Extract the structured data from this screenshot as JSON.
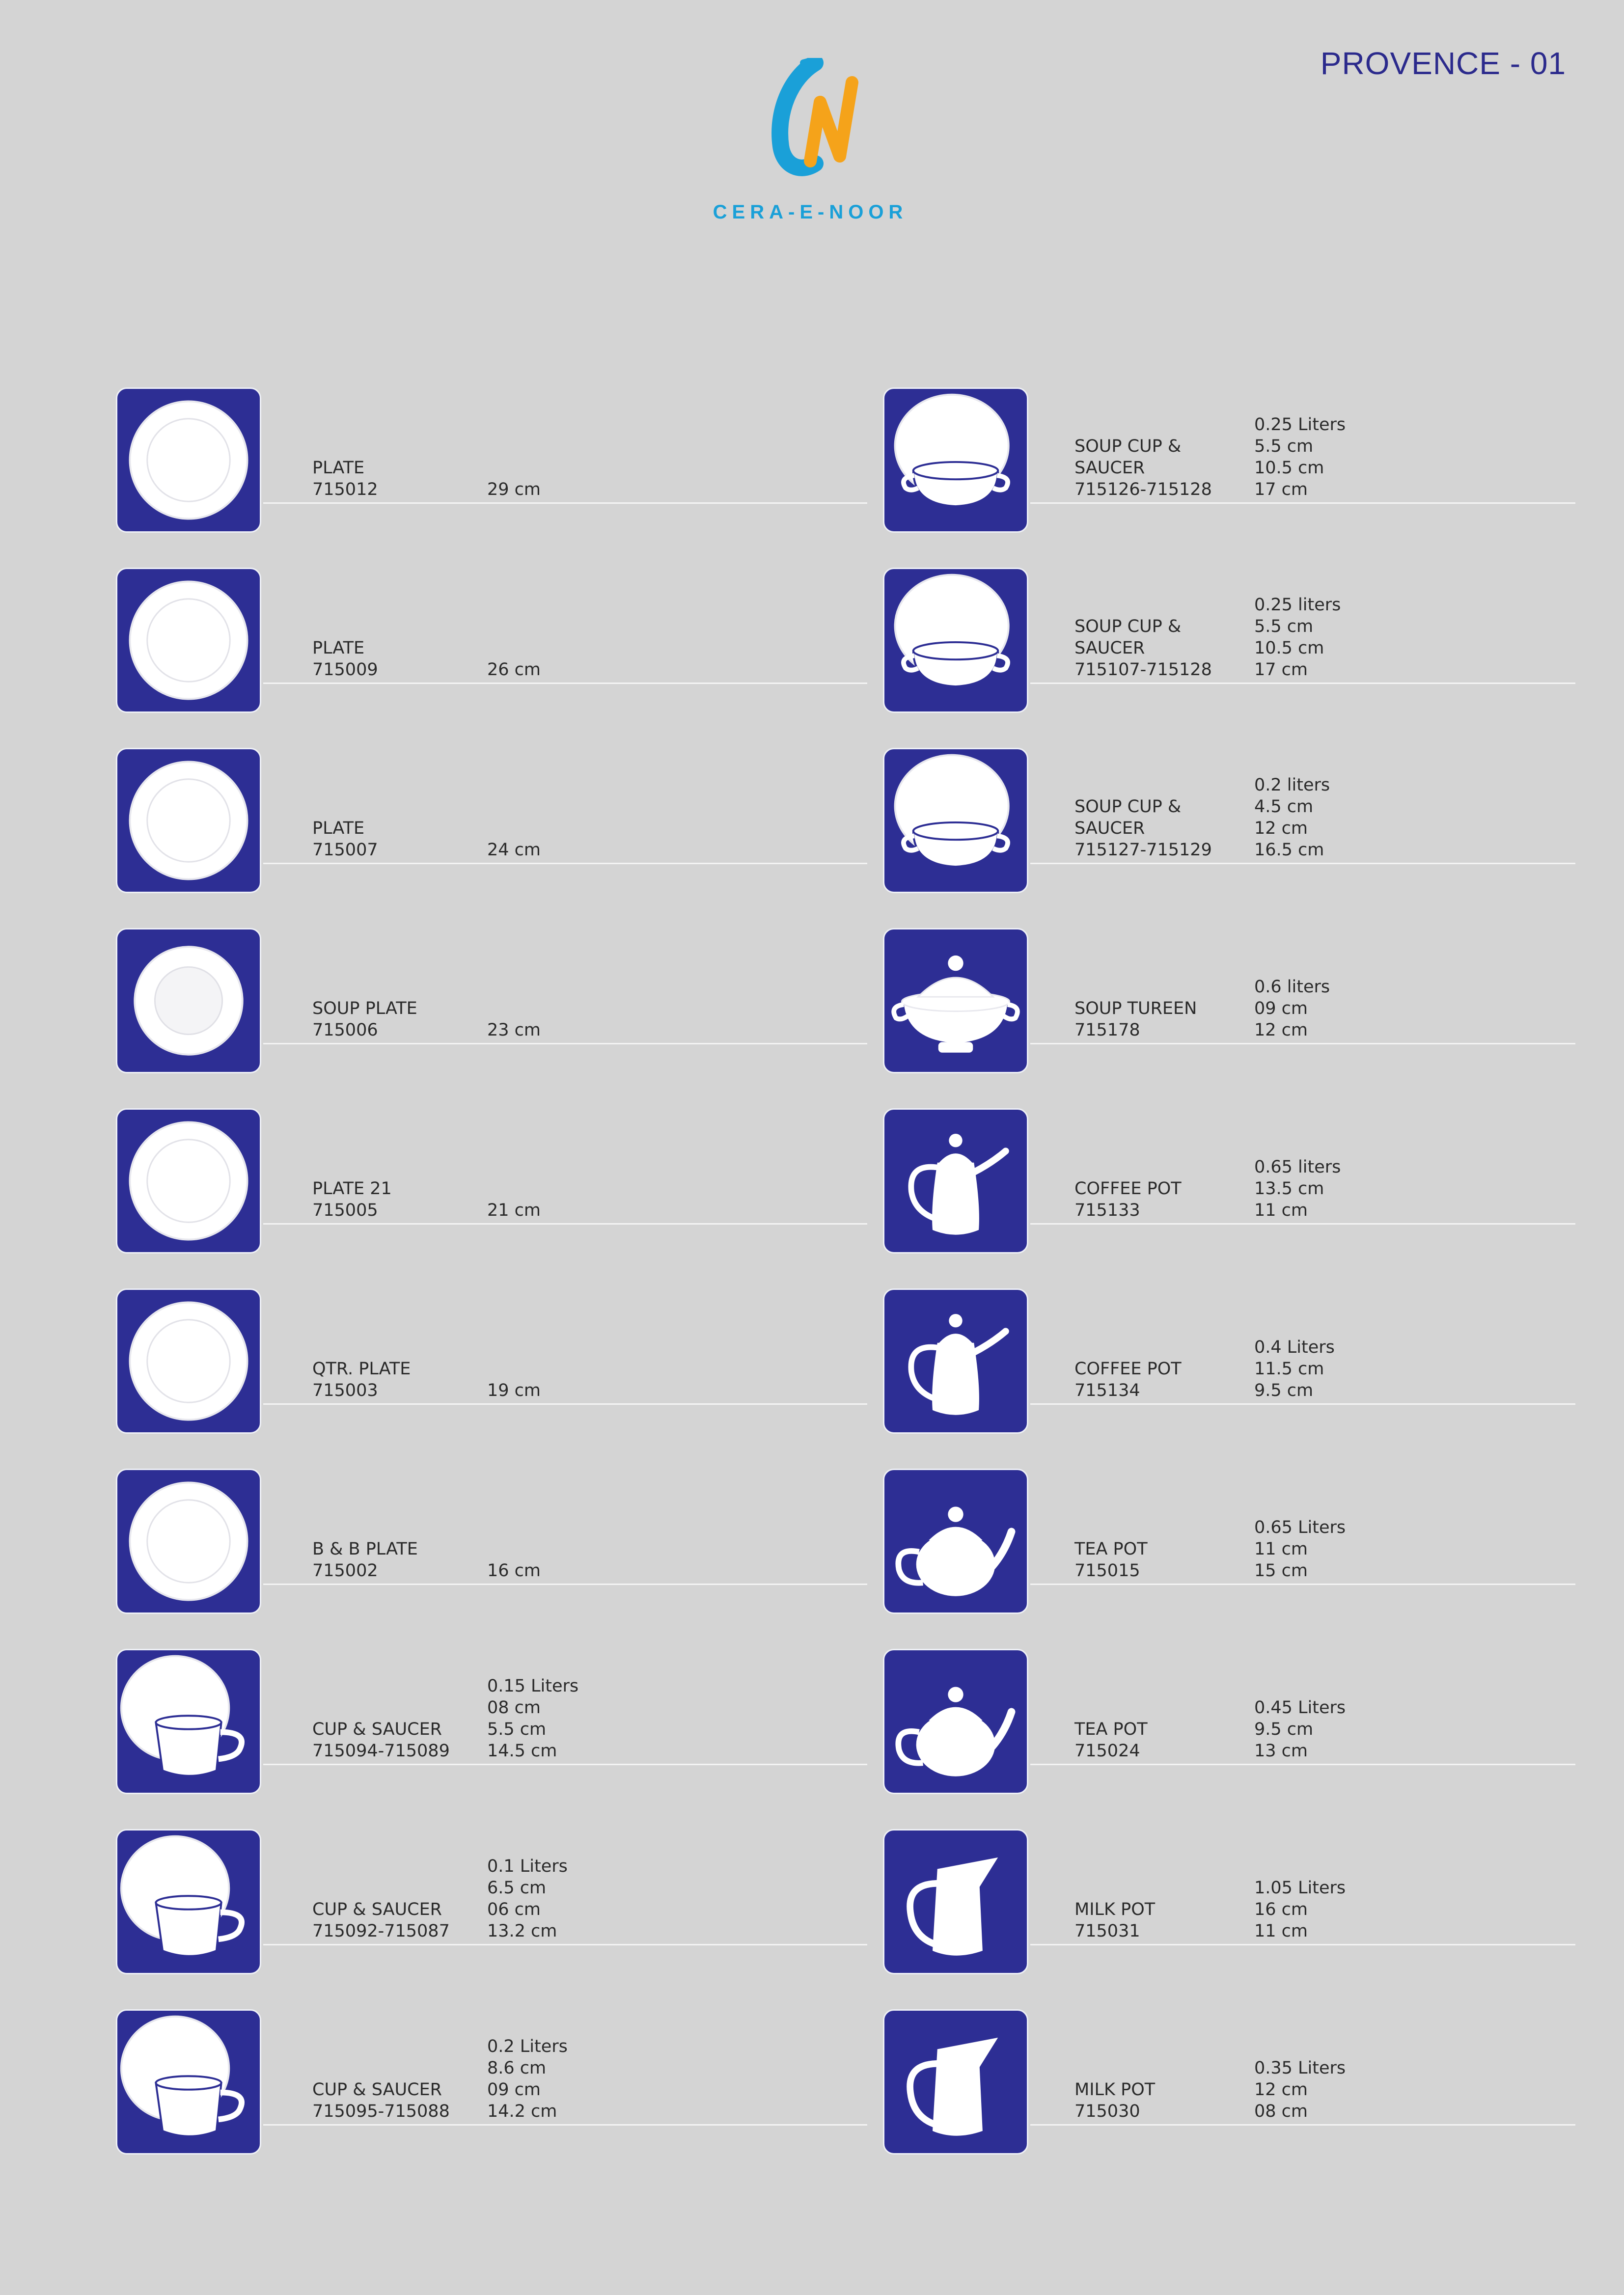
{
  "page": {
    "title": "PROVENCE - 01"
  },
  "brand": {
    "logo_mark": "CN",
    "logo_text": "CERA-E-NOOR",
    "colors": {
      "blue": "#1aa0d8",
      "orange": "#f5a31a",
      "navy": "#2d2e94"
    }
  },
  "left_items": [
    {
      "name": "PLATE",
      "code": "715012",
      "specs": [
        "29 cm"
      ],
      "icon": "plate-icon"
    },
    {
      "name": "PLATE",
      "code": "715009",
      "specs": [
        "26 cm"
      ],
      "icon": "plate-icon"
    },
    {
      "name": "PLATE",
      "code": "715007",
      "specs": [
        "24 cm"
      ],
      "icon": "plate-icon"
    },
    {
      "name": "SOUP PLATE",
      "code": "715006",
      "specs": [
        "23 cm"
      ],
      "icon": "soup-plate-icon"
    },
    {
      "name": "PLATE 21",
      "code": "715005",
      "specs": [
        "21 cm"
      ],
      "icon": "plate-icon"
    },
    {
      "name": "QTR. PLATE",
      "code": "715003",
      "specs": [
        "19 cm"
      ],
      "icon": "plate-icon"
    },
    {
      "name": "B & B PLATE",
      "code": "715002",
      "specs": [
        "16 cm"
      ],
      "icon": "plate-icon"
    },
    {
      "name": "CUP & SAUCER",
      "code": "715094-715089",
      "specs": [
        "0.15 Liters",
        "08 cm",
        "5.5 cm",
        "14.5 cm"
      ],
      "icon": "cup-saucer-icon"
    },
    {
      "name": "CUP & SAUCER",
      "code": "715092-715087",
      "specs": [
        "0.1 Liters",
        "6.5 cm",
        "06 cm",
        "13.2 cm"
      ],
      "icon": "cup-saucer-icon"
    },
    {
      "name": "CUP & SAUCER",
      "code": "715095-715088",
      "specs": [
        "0.2 Liters",
        "8.6 cm",
        "09 cm",
        "14.2 cm"
      ],
      "icon": "cup-saucer-icon"
    }
  ],
  "right_items": [
    {
      "name": "SOUP CUP &\nSAUCER",
      "code": "715126-715128",
      "specs": [
        "0.25 Liters",
        "5.5 cm",
        "10.5 cm",
        "17 cm"
      ],
      "icon": "soup-cup-saucer-icon"
    },
    {
      "name": "SOUP CUP &\nSAUCER",
      "code": "715107-715128",
      "specs": [
        "0.25 liters",
        "5.5 cm",
        "10.5 cm",
        "17 cm"
      ],
      "icon": "soup-cup-saucer-icon"
    },
    {
      "name": "SOUP CUP &\nSAUCER",
      "code": "715127-715129",
      "specs": [
        "0.2 liters",
        "4.5 cm",
        "12 cm",
        "16.5 cm"
      ],
      "icon": "soup-cup-saucer-icon"
    },
    {
      "name": "SOUP TUREEN",
      "code": "715178",
      "specs": [
        "0.6 liters",
        "09 cm",
        "12 cm"
      ],
      "icon": "soup-tureen-icon"
    },
    {
      "name": "COFFEE POT",
      "code": "715133",
      "specs": [
        "0.65 liters",
        "13.5 cm",
        "11 cm"
      ],
      "icon": "coffee-pot-icon"
    },
    {
      "name": "COFFEE POT",
      "code": "715134",
      "specs": [
        "0.4 Liters",
        "11.5 cm",
        "9.5 cm"
      ],
      "icon": "coffee-pot-icon"
    },
    {
      "name": "TEA POT",
      "code": "715015",
      "specs": [
        "0.65 Liters",
        "11 cm",
        "15 cm"
      ],
      "icon": "tea-pot-icon"
    },
    {
      "name": "TEA POT",
      "code": "715024",
      "specs": [
        "0.45 Liters",
        "9.5 cm",
        "13 cm"
      ],
      "icon": "tea-pot-icon"
    },
    {
      "name": "MILK POT",
      "code": "715031",
      "specs": [
        "1.05 Liters",
        "16 cm",
        "11 cm"
      ],
      "icon": "milk-pot-icon"
    },
    {
      "name": "MILK POT",
      "code": "715030",
      "specs": [
        "0.35 Liters",
        "12 cm",
        "08 cm"
      ],
      "icon": "milk-pot-icon"
    }
  ]
}
